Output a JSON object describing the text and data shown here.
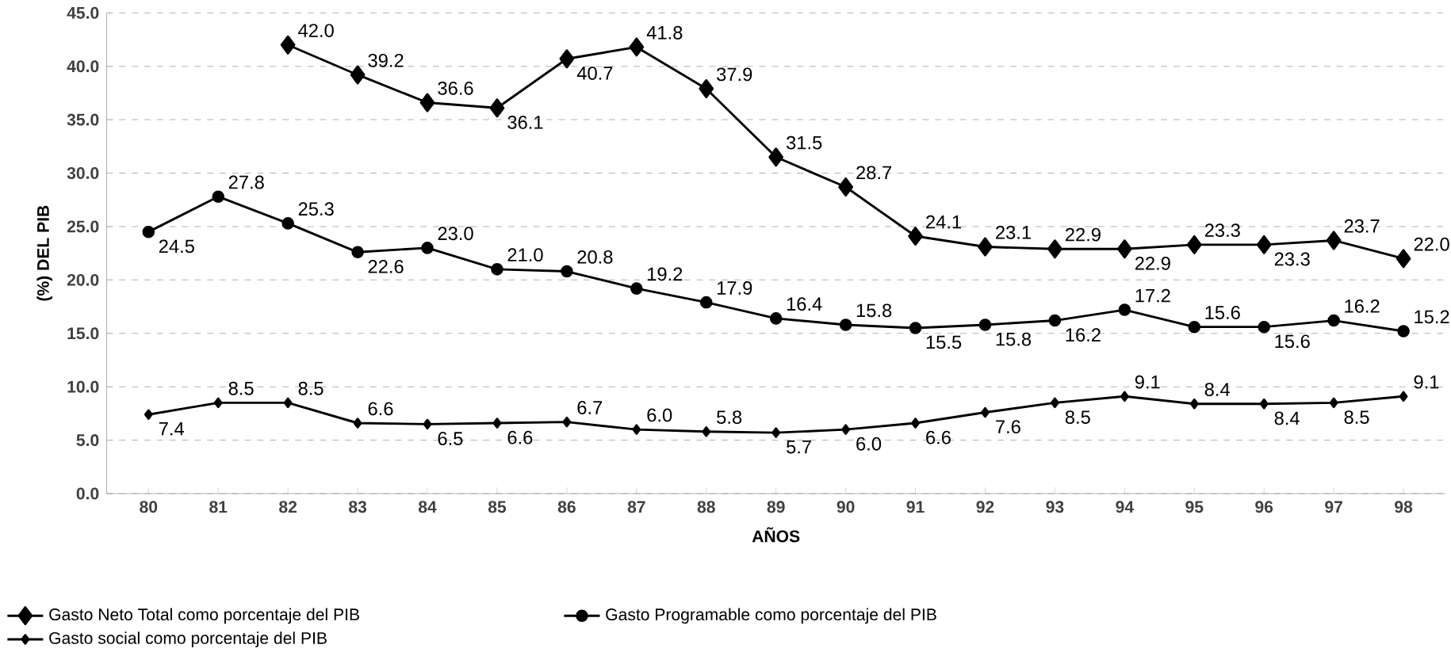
{
  "chart_data": {
    "type": "line",
    "xlabel": "AÑOS",
    "ylabel": "(%) DEL PIB",
    "categories": [
      "80",
      "81",
      "82",
      "83",
      "84",
      "85",
      "86",
      "87",
      "88",
      "89",
      "90",
      "91",
      "92",
      "93",
      "94",
      "95",
      "96",
      "97",
      "98"
    ],
    "series": [
      {
        "name": "Gasto Neto Total como porcentaje del PIB",
        "color": "#000000",
        "marker": "diamond",
        "values": [
          null,
          null,
          42.0,
          39.2,
          36.6,
          36.1,
          40.7,
          41.8,
          37.9,
          31.5,
          28.7,
          24.1,
          23.1,
          22.9,
          22.9,
          23.3,
          23.3,
          23.7,
          22.0
        ],
        "value_labels": [
          null,
          null,
          "42.0",
          "39.2",
          "36.6",
          "36.1",
          "40.7",
          "41.8",
          "37.9",
          "31.5",
          "28.7",
          "24.1",
          "23.1",
          "22.9",
          "22.9",
          "23.3",
          "23.3",
          "23.7",
          "22.0"
        ]
      },
      {
        "name": "Gasto Programable como porcentaje del PIB",
        "color": "#000000",
        "marker": "circle",
        "values": [
          24.5,
          27.8,
          25.3,
          22.6,
          23.0,
          21.0,
          20.8,
          19.2,
          17.9,
          16.4,
          15.8,
          15.5,
          15.8,
          16.2,
          17.2,
          15.6,
          15.6,
          16.2,
          15.2
        ],
        "value_labels": [
          "24.5",
          "27.8",
          "25.3",
          "22.6",
          "23.0",
          "21.0",
          "20.8",
          "19.2",
          "17.9",
          "16.4",
          "15.8",
          "15.5",
          "15.8",
          "16.2",
          "17.2",
          "15.6",
          "15.6",
          "16.2",
          "15.2"
        ]
      },
      {
        "name": "Gasto social como porcentaje del PIB",
        "color": "#000000",
        "marker": "diamond",
        "values": [
          7.4,
          8.5,
          8.5,
          6.6,
          6.5,
          6.6,
          6.7,
          6.0,
          5.8,
          5.7,
          6.0,
          6.6,
          7.6,
          8.5,
          9.1,
          8.4,
          8.4,
          8.5,
          9.1
        ],
        "value_labels": [
          "7.4",
          "8.5",
          "8.5",
          "6.6",
          "6.5",
          "6.6",
          "6.7",
          "6.0",
          "5.8",
          "5.7",
          "6.0",
          "6.6",
          "7.6",
          "8.5",
          "9.1",
          "8.4",
          "8.4",
          "8.5",
          "9.1"
        ]
      }
    ],
    "ylim": [
      0,
      45
    ],
    "yticks": [
      {
        "value": 0,
        "label": "0.0"
      },
      {
        "value": 5,
        "label": "5.0"
      },
      {
        "value": 10,
        "label": "10.0"
      },
      {
        "value": 15,
        "label": "15.0"
      },
      {
        "value": 20,
        "label": "20.0"
      },
      {
        "value": 25,
        "label": "25.0"
      },
      {
        "value": 30,
        "label": "30.0"
      },
      {
        "value": 35,
        "label": "35.0"
      },
      {
        "value": 40,
        "label": "40.0"
      },
      {
        "value": 45,
        "label": "45.0"
      }
    ],
    "grid": "y",
    "legend": "bottom",
    "line_style": "solid"
  }
}
